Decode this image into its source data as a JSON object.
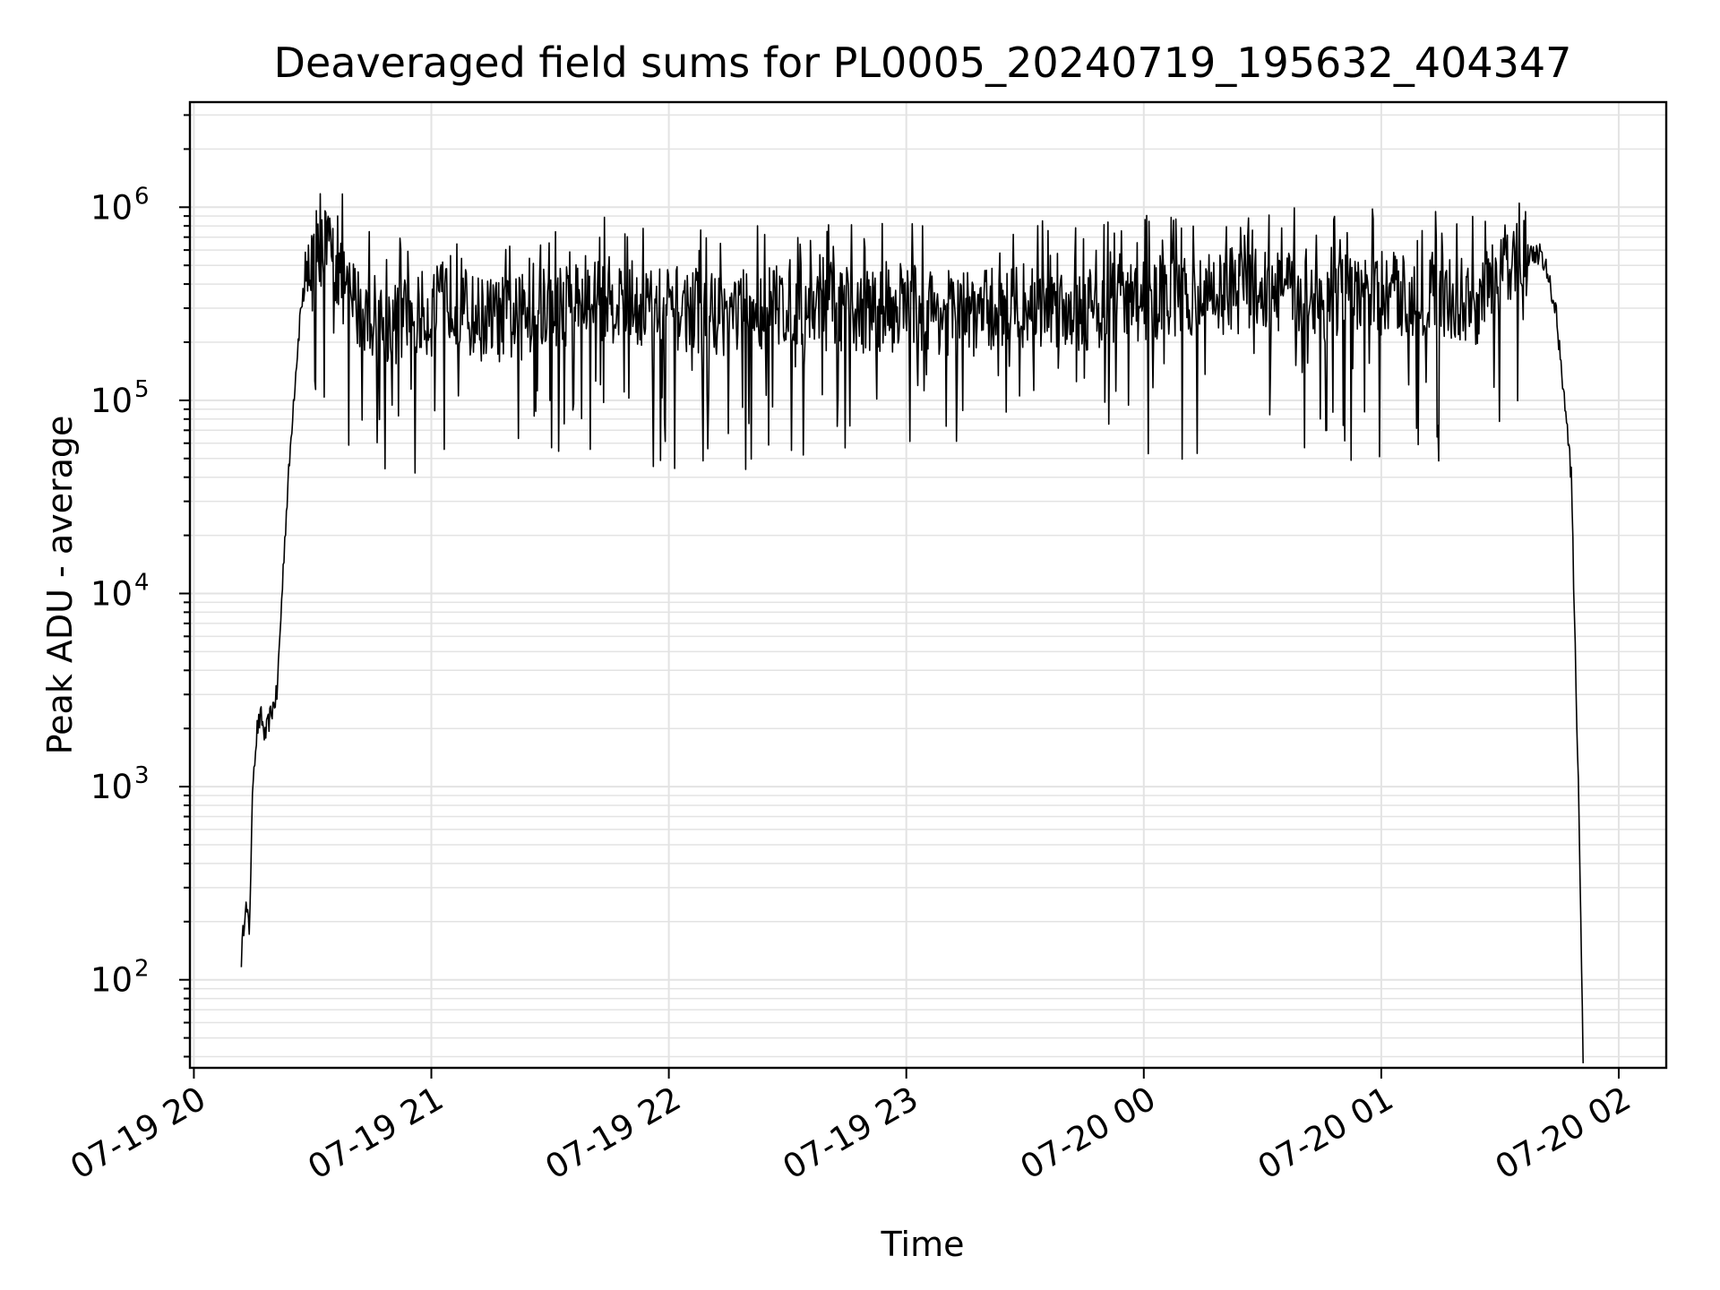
{
  "chart_data": {
    "type": "line",
    "title": "Deaveraged field sums for PL0005_20240719_195632_404347",
    "xlabel": "Time",
    "ylabel": "Peak ADU - average",
    "y_scale": "log",
    "grid": true,
    "xlim": [
      "2024-07-19 19:59",
      "2024-07-20 02:12"
    ],
    "ylim": [
      35,
      3500000
    ],
    "x_ticks": [
      "2024-07-19 20:00",
      "2024-07-19 21:00",
      "2024-07-19 22:00",
      "2024-07-19 23:00",
      "2024-07-20 00:00",
      "2024-07-20 01:00",
      "2024-07-20 02:00"
    ],
    "x_tick_labels": [
      "07-19 20",
      "07-19 21",
      "07-19 22",
      "07-19 23",
      "07-20 00",
      "07-20 01",
      "07-20 02"
    ],
    "y_ticks": [
      100,
      1000,
      10000,
      100000,
      1000000
    ],
    "series": [
      {
        "color": "#000000",
        "x": [
          "2024-07-19 20:12",
          "2024-07-19 20:13",
          "2024-07-19 20:14",
          "2024-07-19 20:15",
          "2024-07-19 20:16",
          "2024-07-19 20:17",
          "2024-07-19 20:18",
          "2024-07-19 20:19",
          "2024-07-19 20:20",
          "2024-07-19 20:21",
          "2024-07-19 20:23",
          "2024-07-19 20:25",
          "2024-07-19 20:27",
          "2024-07-19 20:30",
          "2024-07-19 20:33",
          "2024-07-19 20:36",
          "2024-07-19 20:39",
          "2024-07-19 20:42",
          "2024-07-19 20:45",
          "2024-07-19 20:48",
          "2024-07-19 20:51",
          "2024-07-19 20:55",
          "2024-07-19 21:00",
          "2024-07-19 21:05",
          "2024-07-19 21:10",
          "2024-07-19 21:20",
          "2024-07-19 21:30",
          "2024-07-19 21:40",
          "2024-07-19 21:50",
          "2024-07-19 22:00",
          "2024-07-19 22:15",
          "2024-07-19 22:30",
          "2024-07-19 22:45",
          "2024-07-19 23:00",
          "2024-07-19 23:15",
          "2024-07-19 23:30",
          "2024-07-19 23:45",
          "2024-07-20 00:00",
          "2024-07-20 00:15",
          "2024-07-20 00:30",
          "2024-07-20 00:45",
          "2024-07-20 01:00",
          "2024-07-20 01:15",
          "2024-07-20 01:25",
          "2024-07-20 01:32",
          "2024-07-20 01:36",
          "2024-07-20 01:40",
          "2024-07-20 01:42",
          "2024-07-20 01:44",
          "2024-07-20 01:46",
          "2024-07-20 01:48",
          "2024-07-20 01:49",
          "2024-07-20 01:50",
          "2024-07-20 01:51"
        ],
        "values": [
          130,
          250,
          180,
          1200,
          2000,
          2300,
          1800,
          2200,
          2600,
          3000,
          20000,
          90000,
          300000,
          600000,
          650000,
          500000,
          350000,
          300000,
          280000,
          260000,
          250000,
          280000,
          280000,
          350000,
          270000,
          260000,
          300000,
          350000,
          320000,
          300000,
          280000,
          320000,
          290000,
          300000,
          280000,
          310000,
          300000,
          330000,
          360000,
          380000,
          330000,
          360000,
          340000,
          320000,
          520000,
          560000,
          580000,
          450000,
          300000,
          120000,
          40000,
          5000,
          700,
          35
        ]
      }
    ]
  }
}
